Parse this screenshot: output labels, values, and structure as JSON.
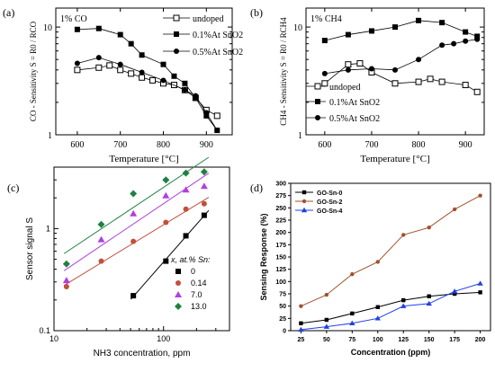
{
  "panel_labels": [
    "(a)",
    "(b)",
    "(c)",
    "(d)"
  ],
  "chart_data": [
    {
      "id": "a",
      "type": "line",
      "annotation": "1% CO",
      "xlabel": "Temperature [°C]",
      "ylabel": "CO - Sensitivity S = R0 / RCO",
      "yscale": "log",
      "xlim": [
        550,
        960
      ],
      "ylim": [
        1,
        15
      ],
      "x_ticks": [
        600,
        700,
        800,
        900
      ],
      "y_ticks": [
        1,
        10
      ],
      "legend_position": "top-right",
      "series": [
        {
          "name": "undoped",
          "marker": "open-square",
          "x": [
            600,
            650,
            675,
            700,
            725,
            750,
            775,
            800,
            825,
            850,
            875,
            900,
            925
          ],
          "y": [
            4.0,
            4.2,
            4.4,
            4.0,
            3.7,
            3.4,
            3.2,
            3.0,
            2.9,
            2.6,
            2.2,
            1.7,
            1.5
          ]
        },
        {
          "name": "0.1%At SnO2",
          "marker": "filled-square",
          "x": [
            600,
            650,
            700,
            725,
            750,
            800,
            825,
            850,
            875,
            900,
            925
          ],
          "y": [
            9.5,
            9.7,
            8.5,
            7.0,
            5.5,
            4.5,
            3.5,
            3.0,
            2.2,
            1.5,
            1.1
          ]
        },
        {
          "name": "0.5%At SnO2",
          "marker": "filled-circle",
          "x": [
            600,
            650,
            700,
            750,
            800,
            850,
            875,
            900,
            925
          ],
          "y": [
            4.6,
            5.2,
            4.5,
            3.8,
            3.2,
            2.6,
            2.3,
            1.6,
            1.1
          ]
        }
      ]
    },
    {
      "id": "b",
      "type": "line",
      "annotation": "1% CH4",
      "xlabel": "Temperature [°C]",
      "ylabel": "CH4 - Sensitivity S = R0 / RCH4",
      "yscale": "log",
      "xlim": [
        560,
        940
      ],
      "ylim": [
        1,
        15
      ],
      "x_ticks": [
        600,
        700,
        800,
        900
      ],
      "y_ticks": [
        1,
        10
      ],
      "legend_position": "middle-left",
      "series": [
        {
          "name": "undoped",
          "marker": "open-square",
          "x": [
            600,
            650,
            675,
            700,
            750,
            800,
            825,
            850,
            900,
            925
          ],
          "y": [
            3.0,
            4.5,
            4.6,
            3.8,
            3.0,
            3.1,
            3.3,
            3.1,
            2.9,
            2.5
          ]
        },
        {
          "name": "0.1%At SnO2",
          "marker": "filled-square",
          "x": [
            600,
            650,
            700,
            750,
            800,
            850,
            900,
            925
          ],
          "y": [
            7.5,
            8.5,
            9.2,
            10.0,
            11.5,
            11.0,
            9.0,
            8.2
          ]
        },
        {
          "name": "0.5%At SnO2",
          "marker": "filled-circle",
          "x": [
            600,
            650,
            700,
            750,
            800,
            850,
            875,
            900,
            925
          ],
          "y": [
            3.7,
            4.0,
            4.1,
            4.0,
            5.0,
            6.8,
            7.0,
            7.4,
            7.7
          ]
        }
      ]
    },
    {
      "id": "c",
      "type": "scatter",
      "xlabel": "NH3 concentration, ppm",
      "ylabel": "Sensor signal S",
      "xscale": "log",
      "yscale": "log",
      "xlim": [
        10,
        400
      ],
      "ylim": [
        0.1,
        4
      ],
      "x_ticks": [
        10,
        100
      ],
      "y_ticks": [
        0.1,
        1
      ],
      "legend_title": "x, at.% Sn:",
      "legend_position": "bottom-right",
      "series": [
        {
          "name": "0",
          "color": "#000000",
          "marker": "square",
          "x": [
            53,
            105,
            160,
            235
          ],
          "y": [
            0.22,
            0.48,
            0.85,
            1.35
          ]
        },
        {
          "name": "0.14",
          "color": "#c0503c",
          "marker": "circle",
          "x": [
            13,
            27,
            53,
            105,
            160,
            235
          ],
          "y": [
            0.27,
            0.48,
            0.75,
            1.15,
            1.55,
            1.75
          ]
        },
        {
          "name": "7.0",
          "color": "#b040e0",
          "marker": "triangle",
          "x": [
            13,
            27,
            53,
            105,
            160,
            235
          ],
          "y": [
            0.31,
            0.78,
            1.4,
            2.1,
            2.4,
            2.6
          ]
        },
        {
          "name": "13.0",
          "color": "#208040",
          "marker": "diamond",
          "x": [
            13,
            27,
            53,
            105,
            160,
            235
          ],
          "y": [
            0.45,
            1.1,
            2.2,
            3.0,
            3.5,
            3.6
          ]
        }
      ]
    },
    {
      "id": "d",
      "type": "line",
      "xlabel": "Concentration (ppm)",
      "ylabel": "Sensing Response (%)",
      "xlim": [
        15,
        210
      ],
      "ylim": [
        0,
        300
      ],
      "x_ticks": [
        25,
        50,
        75,
        100,
        125,
        150,
        175,
        200
      ],
      "y_ticks": [
        0,
        25,
        50,
        75,
        100,
        125,
        150,
        175,
        200,
        225,
        250,
        275,
        300
      ],
      "categories": [
        25,
        50,
        75,
        100,
        125,
        150,
        175,
        200
      ],
      "legend_position": "top-left",
      "series": [
        {
          "name": "GO-Sn-0",
          "color": "#000000",
          "marker": "square",
          "values": [
            15,
            22,
            35,
            48,
            62,
            70,
            75,
            78
          ]
        },
        {
          "name": "GO-Sn-2",
          "color": "#a0522d",
          "marker": "circle",
          "values": [
            50,
            73,
            115,
            140,
            195,
            210,
            247,
            275
          ]
        },
        {
          "name": "GO-Sn-4",
          "color": "#2040e0",
          "marker": "triangle",
          "values": [
            2,
            8,
            15,
            25,
            50,
            55,
            80,
            96
          ]
        }
      ]
    }
  ]
}
